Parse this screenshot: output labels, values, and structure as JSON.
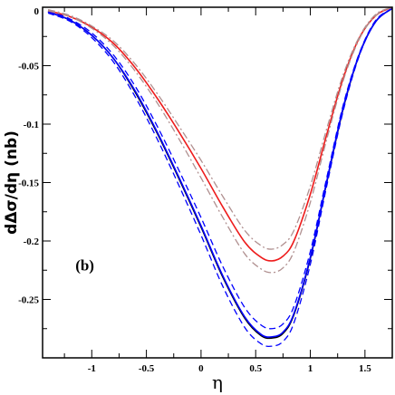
{
  "chart_data": {
    "type": "line",
    "title": "",
    "xlabel": "η",
    "ylabel": "dΔσ/dη (nb)",
    "annotation": "(b)",
    "xlim": [
      -1.45,
      1.75
    ],
    "ylim": [
      -0.3,
      0
    ],
    "xticks": [
      -1,
      -0.5,
      0,
      0.5,
      1,
      1.5
    ],
    "xtick_labels": [
      "-1",
      "-0.5",
      "0",
      "0.5",
      "1",
      "1.5"
    ],
    "yticks": [
      0,
      -0.05,
      -0.1,
      -0.15,
      -0.2,
      -0.25
    ],
    "ytick_labels": [
      "0",
      "-0.05",
      "-0.1",
      "-0.15",
      "-0.2",
      "-0.25"
    ],
    "grid": false,
    "legend": "none",
    "series": [
      {
        "color": "#000000",
        "style": "solid",
        "x": [
          -1.4,
          -1.2,
          -1.0,
          -0.8,
          -0.6,
          -0.4,
          -0.2,
          0.0,
          0.2,
          0.4,
          0.55,
          0.65,
          0.75,
          0.85,
          1.0,
          1.15,
          1.3,
          1.45,
          1.6,
          1.75
        ],
        "y": [
          -0.004,
          -0.011,
          -0.024,
          -0.044,
          -0.073,
          -0.108,
          -0.147,
          -0.188,
          -0.231,
          -0.266,
          -0.281,
          -0.283,
          -0.279,
          -0.263,
          -0.215,
          -0.15,
          -0.087,
          -0.04,
          -0.012,
          -0.001
        ]
      },
      {
        "color": "#0000ff",
        "style": "solid",
        "x": [
          -1.4,
          -1.2,
          -1.0,
          -0.8,
          -0.6,
          -0.4,
          -0.2,
          0.0,
          0.2,
          0.4,
          0.55,
          0.65,
          0.75,
          0.85,
          1.0,
          1.15,
          1.3,
          1.45,
          1.6,
          1.75
        ],
        "y": [
          -0.004,
          -0.011,
          -0.024,
          -0.044,
          -0.072,
          -0.107,
          -0.146,
          -0.187,
          -0.23,
          -0.265,
          -0.28,
          -0.282,
          -0.278,
          -0.262,
          -0.214,
          -0.149,
          -0.086,
          -0.04,
          -0.012,
          -0.001
        ]
      },
      {
        "color": "#0000ff",
        "style": "dashed",
        "x": [
          -1.4,
          -1.2,
          -1.0,
          -0.8,
          -0.6,
          -0.4,
          -0.2,
          0.0,
          0.2,
          0.4,
          0.55,
          0.65,
          0.75,
          0.85,
          1.0,
          1.15,
          1.3,
          1.45,
          1.6,
          1.75
        ],
        "y": [
          -0.005,
          -0.012,
          -0.026,
          -0.047,
          -0.077,
          -0.113,
          -0.153,
          -0.195,
          -0.239,
          -0.274,
          -0.288,
          -0.29,
          -0.286,
          -0.27,
          -0.22,
          -0.153,
          -0.089,
          -0.041,
          -0.012,
          -0.001
        ]
      },
      {
        "color": "#0000ff",
        "style": "dashed",
        "x": [
          -1.4,
          -1.2,
          -1.0,
          -0.8,
          -0.6,
          -0.4,
          -0.2,
          0.0,
          0.2,
          0.4,
          0.55,
          0.65,
          0.75,
          0.85,
          1.0,
          1.15,
          1.3,
          1.45,
          1.6,
          1.75
        ],
        "y": [
          -0.003,
          -0.01,
          -0.022,
          -0.041,
          -0.068,
          -0.102,
          -0.14,
          -0.18,
          -0.222,
          -0.257,
          -0.272,
          -0.275,
          -0.271,
          -0.256,
          -0.209,
          -0.146,
          -0.084,
          -0.039,
          -0.011,
          -0.001
        ]
      },
      {
        "color": "#ee1c1c",
        "style": "solid",
        "x": [
          -1.4,
          -1.2,
          -1.0,
          -0.8,
          -0.6,
          -0.4,
          -0.2,
          0.0,
          0.2,
          0.4,
          0.55,
          0.65,
          0.75,
          0.85,
          1.0,
          1.15,
          1.3,
          1.45,
          1.6,
          1.75
        ],
        "y": [
          -0.003,
          -0.008,
          -0.017,
          -0.031,
          -0.052,
          -0.078,
          -0.107,
          -0.138,
          -0.171,
          -0.201,
          -0.214,
          -0.217,
          -0.213,
          -0.2,
          -0.16,
          -0.109,
          -0.061,
          -0.026,
          -0.007,
          0.0
        ]
      },
      {
        "color": "#b09090",
        "style": "dashdot",
        "x": [
          -1.4,
          -1.2,
          -1.0,
          -0.8,
          -0.6,
          -0.4,
          -0.2,
          0.0,
          0.2,
          0.4,
          0.55,
          0.65,
          0.75,
          0.85,
          1.0,
          1.15,
          1.3,
          1.45,
          1.6,
          1.75
        ],
        "y": [
          -0.003,
          -0.008,
          -0.018,
          -0.033,
          -0.055,
          -0.082,
          -0.113,
          -0.146,
          -0.18,
          -0.211,
          -0.224,
          -0.227,
          -0.223,
          -0.209,
          -0.167,
          -0.113,
          -0.063,
          -0.027,
          -0.007,
          0.0
        ]
      },
      {
        "color": "#b09090",
        "style": "dashdot",
        "x": [
          -1.4,
          -1.2,
          -1.0,
          -0.8,
          -0.6,
          -0.4,
          -0.2,
          0.0,
          0.2,
          0.4,
          0.55,
          0.65,
          0.75,
          0.85,
          1.0,
          1.15,
          1.3,
          1.45,
          1.6,
          1.75
        ],
        "y": [
          -0.002,
          -0.007,
          -0.016,
          -0.029,
          -0.049,
          -0.074,
          -0.102,
          -0.131,
          -0.162,
          -0.191,
          -0.204,
          -0.207,
          -0.203,
          -0.191,
          -0.153,
          -0.104,
          -0.058,
          -0.025,
          -0.006,
          0.0
        ]
      }
    ]
  }
}
